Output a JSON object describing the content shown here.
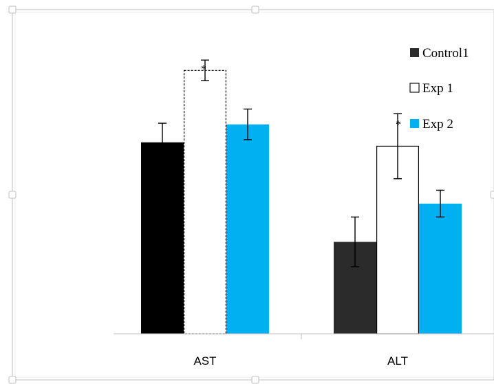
{
  "chart_data": {
    "type": "bar",
    "categories": [
      "AST",
      "ALT"
    ],
    "series": [
      {
        "name": "Control1",
        "values": [
          50.0,
          24.0
        ],
        "errors": [
          5.0,
          6.5
        ],
        "color": "#000000",
        "fill_alt": "#2b2b2b"
      },
      {
        "name": "Exp 1",
        "values": [
          68.8,
          49.0
        ],
        "errors": [
          2.7,
          8.5
        ],
        "color": "#ffffff"
      },
      {
        "name": "Exp 2",
        "values": [
          54.7,
          34.0
        ],
        "errors": [
          4.0,
          3.5
        ],
        "color": "#00b0f0"
      }
    ],
    "annotations": [
      {
        "text": "*",
        "category": "AST",
        "series": "Exp 1"
      },
      {
        "text": "*",
        "note_position": "legend-left"
      }
    ],
    "ylim": [
      0,
      80
    ],
    "grid": false,
    "legend_placement": "top-right",
    "title": "",
    "xlabel": "",
    "ylabel": ""
  }
}
